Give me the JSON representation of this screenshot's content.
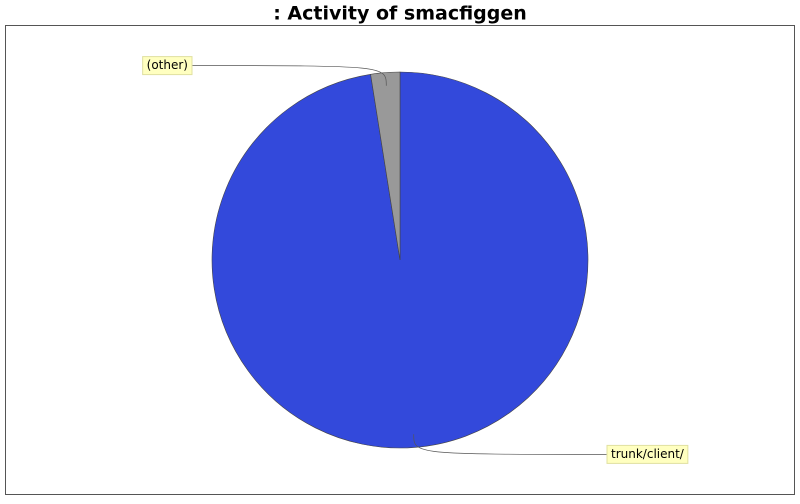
{
  "chart_data": {
    "type": "pie",
    "title": ": Activity of smacfiggen",
    "categories": [
      "trunk/client/",
      "(other)"
    ],
    "values": [
      97.5,
      2.5
    ],
    "colors": [
      "#3349db",
      "#999999"
    ]
  }
}
